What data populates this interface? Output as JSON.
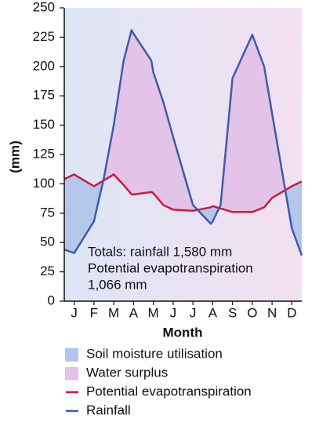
{
  "chart_data": {
    "type": "line",
    "y_label": "(mm)",
    "x_label": "Month",
    "x": [
      0.5,
      1,
      2,
      2.5,
      3,
      3.5,
      3.9,
      4,
      4.9,
      5,
      5.5,
      6,
      7,
      7.9,
      8,
      8.4,
      9,
      10,
      10.6,
      11,
      12,
      12.5
    ],
    "series": [
      {
        "name": "Potential evapotranspiration",
        "color": "#d0183c",
        "values": [
          104,
          108,
          98,
          103,
          108,
          99,
          91,
          91,
          93,
          92,
          82,
          78,
          77,
          80,
          81,
          79,
          76,
          76,
          80,
          88,
          98,
          102
        ]
      },
      {
        "name": "Rainfall",
        "color": "#3f5bab",
        "values": [
          44,
          41,
          68,
          105,
          150,
          205,
          231,
          228,
          205,
          195,
          170,
          140,
          82,
          66,
          68,
          82,
          190,
          227,
          200,
          160,
          62,
          39
        ]
      }
    ],
    "areas": [
      {
        "name": "Soil moisture utilisation",
        "color": "#b4c6ea"
      },
      {
        "name": "Water surplus",
        "color": "#e4c3e8"
      }
    ],
    "annotation": [
      "Totals: rainfall 1,580 mm",
      "Potential evapotranspiration",
      "1,066 mm"
    ],
    "xlim": [
      0.5,
      12.5
    ],
    "xticks": [
      {
        "value": 1,
        "label": "J"
      },
      {
        "value": 2,
        "label": "F"
      },
      {
        "value": 3,
        "label": "M"
      },
      {
        "value": 4,
        "label": "A"
      },
      {
        "value": 5,
        "label": "M"
      },
      {
        "value": 6,
        "label": "J"
      },
      {
        "value": 7,
        "label": "J"
      },
      {
        "value": 8,
        "label": "A"
      },
      {
        "value": 9,
        "label": "S"
      },
      {
        "value": 10,
        "label": "O"
      },
      {
        "value": 11,
        "label": "N"
      },
      {
        "value": 12,
        "label": "D"
      }
    ],
    "ylim": [
      0,
      250
    ],
    "yticks": [
      0,
      25,
      50,
      75,
      100,
      125,
      150,
      175,
      200,
      225,
      250
    ]
  }
}
